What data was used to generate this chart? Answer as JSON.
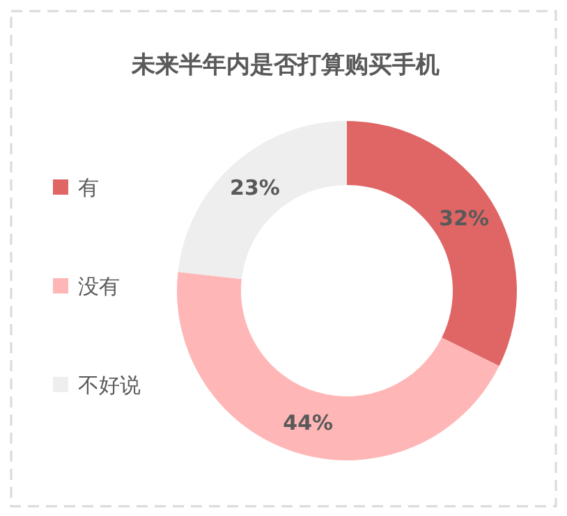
{
  "chart_data": {
    "type": "donut",
    "title": "未来半年内是否打算购买手机",
    "categories": [
      "有",
      "没有",
      "不好说"
    ],
    "values": [
      32,
      44,
      23
    ],
    "colors": [
      "#e06666",
      "#ffb6b6",
      "#eeeeee"
    ],
    "value_labels": [
      "32%",
      "44%",
      "23%"
    ],
    "legend": "left"
  }
}
